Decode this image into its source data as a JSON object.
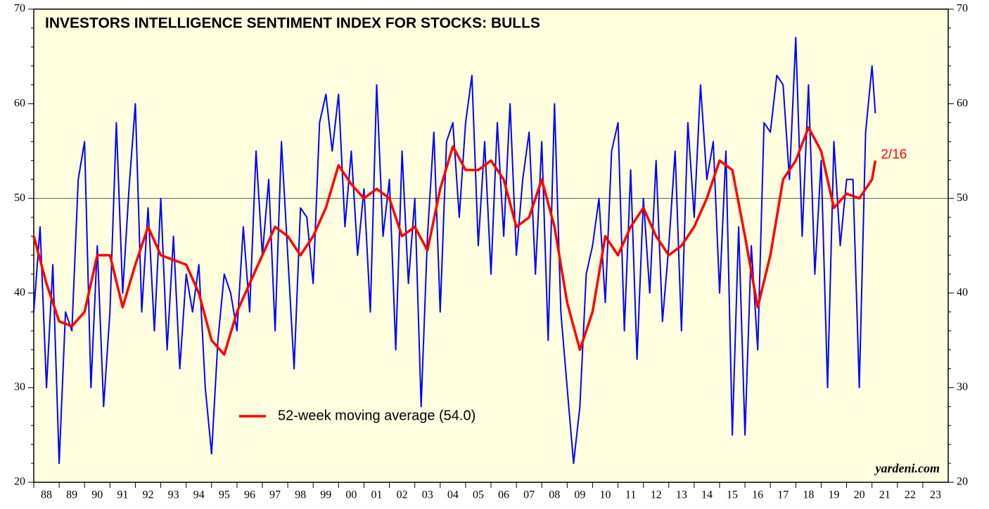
{
  "chart_data": {
    "type": "line",
    "title": "INVESTORS INTELLIGENCE SENTIMENT INDEX FOR STOCKS: BULLS",
    "source": "yardeni.com",
    "xlim": [
      1988,
      2024
    ],
    "xticks": [
      {
        "value": 1988,
        "label": "88"
      },
      {
        "value": 1989,
        "label": "89"
      },
      {
        "value": 1990,
        "label": "90"
      },
      {
        "value": 1991,
        "label": "91"
      },
      {
        "value": 1992,
        "label": "92"
      },
      {
        "value": 1993,
        "label": "93"
      },
      {
        "value": 1994,
        "label": "94"
      },
      {
        "value": 1995,
        "label": "95"
      },
      {
        "value": 1996,
        "label": "96"
      },
      {
        "value": 1997,
        "label": "97"
      },
      {
        "value": 1998,
        "label": "98"
      },
      {
        "value": 1999,
        "label": "99"
      },
      {
        "value": 2000,
        "label": "00"
      },
      {
        "value": 2001,
        "label": "01"
      },
      {
        "value": 2002,
        "label": "02"
      },
      {
        "value": 2003,
        "label": "03"
      },
      {
        "value": 2004,
        "label": "04"
      },
      {
        "value": 2005,
        "label": "05"
      },
      {
        "value": 2006,
        "label": "06"
      },
      {
        "value": 2007,
        "label": "07"
      },
      {
        "value": 2008,
        "label": "08"
      },
      {
        "value": 2009,
        "label": "09"
      },
      {
        "value": 2010,
        "label": "10"
      },
      {
        "value": 2011,
        "label": "11"
      },
      {
        "value": 2012,
        "label": "12"
      },
      {
        "value": 2013,
        "label": "13"
      },
      {
        "value": 2014,
        "label": "14"
      },
      {
        "value": 2015,
        "label": "15"
      },
      {
        "value": 2016,
        "label": "16"
      },
      {
        "value": 2017,
        "label": "17"
      },
      {
        "value": 2018,
        "label": "18"
      },
      {
        "value": 2019,
        "label": "19"
      },
      {
        "value": 2020,
        "label": "20"
      },
      {
        "value": 2021,
        "label": "21"
      },
      {
        "value": 2022,
        "label": "22"
      },
      {
        "value": 2023,
        "label": "23"
      }
    ],
    "ylim": [
      20,
      70
    ],
    "yticks": [
      20,
      30,
      40,
      50,
      60,
      70
    ],
    "hline": 50,
    "series": [
      {
        "color": "#0000ff",
        "x": [
          1988,
          1988.25,
          1988.5,
          1988.75,
          1989,
          1989.25,
          1989.5,
          1989.75,
          1990,
          1990.25,
          1990.5,
          1990.75,
          1991,
          1991.25,
          1991.5,
          1991.75,
          1992,
          1992.25,
          1992.5,
          1992.75,
          1993,
          1993.25,
          1993.5,
          1993.75,
          1994,
          1994.25,
          1994.5,
          1994.75,
          1995,
          1995.25,
          1995.5,
          1995.75,
          1996,
          1996.25,
          1996.5,
          1996.75,
          1997,
          1997.25,
          1997.5,
          1997.75,
          1998,
          1998.25,
          1998.5,
          1998.75,
          1999,
          1999.25,
          1999.5,
          1999.75,
          2000,
          2000.25,
          2000.5,
          2000.75,
          2001,
          2001.25,
          2001.5,
          2001.75,
          2002,
          2002.25,
          2002.5,
          2002.75,
          2003,
          2003.25,
          2003.5,
          2003.75,
          2004,
          2004.25,
          2004.5,
          2004.75,
          2005,
          2005.25,
          2005.5,
          2005.75,
          2006,
          2006.25,
          2006.5,
          2006.75,
          2007,
          2007.25,
          2007.5,
          2007.75,
          2008,
          2008.25,
          2008.5,
          2008.75,
          2009,
          2009.25,
          2009.5,
          2009.75,
          2010,
          2010.25,
          2010.5,
          2010.75,
          2011,
          2011.25,
          2011.5,
          2011.75,
          2012,
          2012.25,
          2012.5,
          2012.75,
          2013,
          2013.25,
          2013.5,
          2013.75,
          2014,
          2014.25,
          2014.5,
          2014.75,
          2015,
          2015.25,
          2015.5,
          2015.75,
          2016,
          2016.25,
          2016.5,
          2016.75,
          2017,
          2017.25,
          2017.5,
          2017.75,
          2018,
          2018.25,
          2018.5,
          2018.75,
          2019,
          2019.25,
          2019.5,
          2019.75,
          2020,
          2020.25,
          2020.5,
          2020.75,
          2021,
          2021.13
        ],
        "values": [
          38,
          47,
          30,
          43,
          22,
          38,
          36,
          52,
          56,
          30,
          45,
          28,
          38,
          58,
          40,
          51,
          60,
          38,
          49,
          36,
          50,
          34,
          46,
          32,
          42,
          38,
          43,
          30,
          23,
          35,
          42,
          40,
          36,
          47,
          38,
          55,
          44,
          52,
          36,
          56,
          44,
          32,
          49,
          48,
          41,
          58,
          61,
          55,
          61,
          47,
          55,
          44,
          51,
          38,
          62,
          46,
          52,
          34,
          55,
          41,
          50,
          28,
          46,
          57,
          38,
          56,
          58,
          48,
          58,
          63,
          45,
          56,
          42,
          58,
          46,
          60,
          44,
          52,
          57,
          42,
          56,
          35,
          60,
          38,
          30,
          22,
          28,
          42,
          45,
          50,
          39,
          55,
          58,
          36,
          53,
          33,
          50,
          40,
          54,
          37,
          45,
          55,
          36,
          58,
          48,
          62,
          52,
          56,
          40,
          55,
          25,
          47,
          25,
          45,
          34,
          58,
          57,
          63,
          62,
          52,
          67,
          46,
          62,
          42,
          54,
          30,
          56,
          45,
          52,
          52,
          30,
          57,
          64,
          59
        ]
      },
      {
        "name": "52-week moving average (54.0)",
        "color": "#ff0000",
        "end_label": "2/16",
        "x": [
          1988,
          1988.5,
          1989,
          1989.5,
          1990,
          1990.5,
          1991,
          1991.5,
          1992,
          1992.5,
          1993,
          1993.5,
          1994,
          1994.5,
          1995,
          1995.5,
          1996,
          1996.5,
          1997,
          1997.5,
          1998,
          1998.5,
          1999,
          1999.5,
          2000,
          2000.5,
          2001,
          2001.5,
          2002,
          2002.5,
          2003,
          2003.5,
          2004,
          2004.5,
          2005,
          2005.5,
          2006,
          2006.5,
          2007,
          2007.5,
          2008,
          2008.5,
          2009,
          2009.5,
          2010,
          2010.5,
          2011,
          2011.5,
          2012,
          2012.5,
          2013,
          2013.5,
          2014,
          2014.5,
          2015,
          2015.5,
          2016,
          2016.5,
          2017,
          2017.5,
          2018,
          2018.5,
          2019,
          2019.5,
          2020,
          2020.5,
          2021,
          2021.13
        ],
        "values": [
          46,
          41,
          37,
          36.5,
          38,
          44,
          44,
          38.5,
          43,
          47,
          44,
          43.5,
          43,
          40,
          35,
          33.5,
          38,
          41,
          44,
          47,
          46,
          44,
          46,
          49,
          53.5,
          51.5,
          50,
          51,
          50,
          46,
          47,
          44.5,
          51,
          55.5,
          53,
          53,
          54,
          52,
          47,
          48,
          52,
          47,
          39,
          34,
          38,
          46,
          44,
          47,
          49,
          46,
          44,
          45,
          47,
          50,
          54,
          53,
          46,
          38.5,
          44,
          52,
          54,
          57.5,
          55,
          49,
          50.5,
          50,
          52,
          54
        ]
      }
    ]
  }
}
